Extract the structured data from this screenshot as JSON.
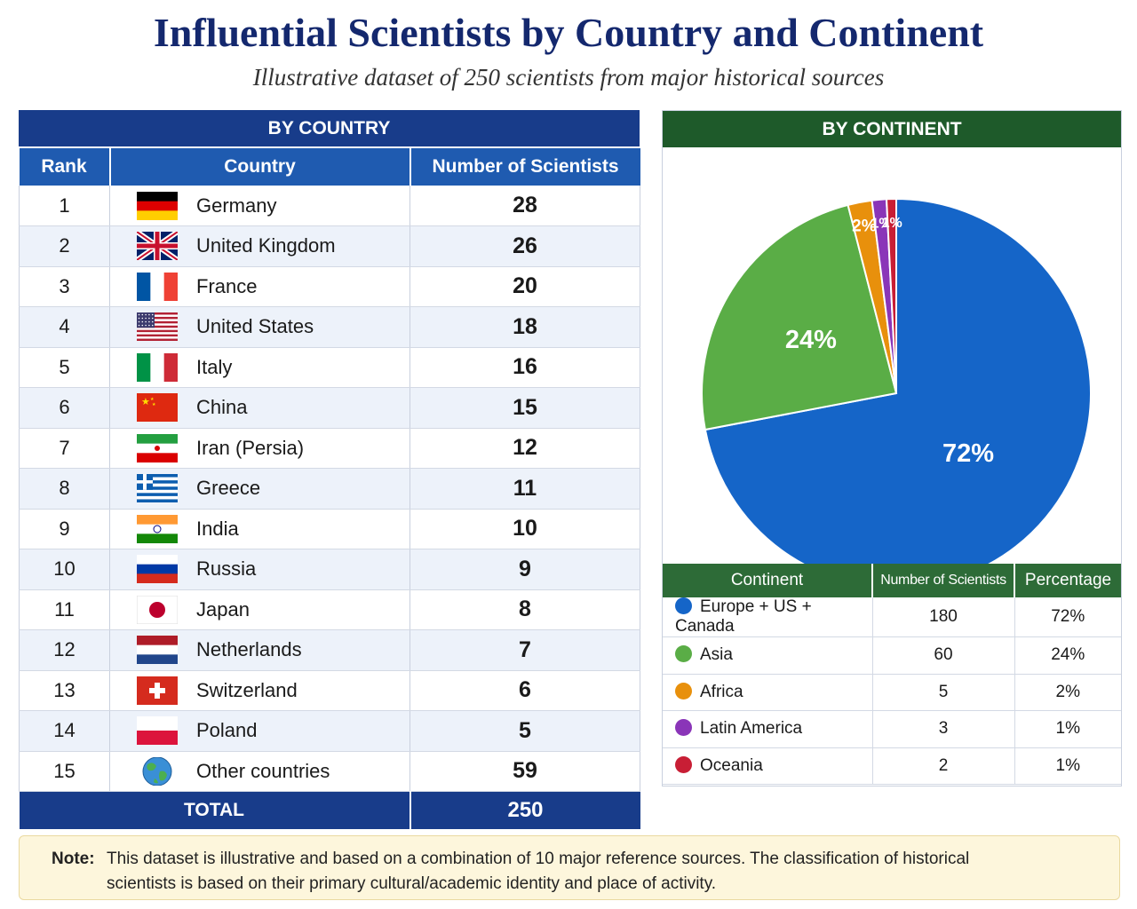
{
  "title": "Influential Scientists by Country and Continent",
  "subtitle": "Illustrative dataset of 250 scientists from major historical sources",
  "country_panel": {
    "heading": "BY COUNTRY",
    "headers": [
      "Rank",
      "Country",
      "Number of Scientists"
    ],
    "rows": [
      {
        "rank": "1",
        "country": "Germany",
        "count": "28",
        "flag": "germany-flag-icon"
      },
      {
        "rank": "2",
        "country": "United Kingdom",
        "count": "26",
        "flag": "united-kingdom-flag-icon"
      },
      {
        "rank": "3",
        "country": "France",
        "count": "20",
        "flag": "france-flag-icon"
      },
      {
        "rank": "4",
        "country": "United States",
        "count": "18",
        "flag": "united-states-flag-icon"
      },
      {
        "rank": "5",
        "country": "Italy",
        "count": "16",
        "flag": "italy-flag-icon"
      },
      {
        "rank": "6",
        "country": "China",
        "count": "15",
        "flag": "china-flag-icon"
      },
      {
        "rank": "7",
        "country": "Iran (Persia)",
        "count": "12",
        "flag": "iran-flag-icon"
      },
      {
        "rank": "8",
        "country": "Greece",
        "count": "11",
        "flag": "greece-flag-icon"
      },
      {
        "rank": "9",
        "country": "India",
        "count": "10",
        "flag": "india-flag-icon"
      },
      {
        "rank": "10",
        "country": "Russia",
        "count": "9",
        "flag": "russia-flag-icon"
      },
      {
        "rank": "11",
        "country": "Japan",
        "count": "8",
        "flag": "japan-flag-icon"
      },
      {
        "rank": "12",
        "country": "Netherlands",
        "count": "7",
        "flag": "netherlands-flag-icon"
      },
      {
        "rank": "13",
        "country": "Switzerland",
        "count": "6",
        "flag": "switzerland-flag-icon"
      },
      {
        "rank": "14",
        "country": "Poland",
        "count": "5",
        "flag": "poland-flag-icon"
      },
      {
        "rank": "15",
        "country": "Other countries",
        "count": "59",
        "flag": "globe-icon"
      }
    ],
    "total_label": "TOTAL",
    "total_value": "250"
  },
  "continent_panel": {
    "heading": "BY CONTINENT",
    "headers": [
      "Continent",
      "Number of Scientists",
      "Percentage"
    ],
    "rows": [
      {
        "continent": "Europe + US + Canada",
        "count": "180",
        "percent": "72%",
        "color": "#1565c8"
      },
      {
        "continent": "Asia",
        "count": "60",
        "percent": "24%",
        "color": "#5aad46"
      },
      {
        "continent": "Africa",
        "count": "5",
        "percent": "2%",
        "color": "#e8900c"
      },
      {
        "continent": "Latin America",
        "count": "3",
        "percent": "1%",
        "color": "#8a35b8"
      },
      {
        "continent": "Oceania",
        "count": "2",
        "percent": "1%",
        "color": "#c81e35"
      }
    ]
  },
  "chart_data": {
    "type": "pie",
    "title": "BY CONTINENT",
    "labels": [
      "Europe + US + Canada",
      "Asia",
      "Africa",
      "Latin America",
      "Oceania"
    ],
    "values": [
      180,
      60,
      5,
      3,
      2
    ],
    "slice_labels": [
      "72%",
      "24%",
      "2%",
      "1%",
      "1%"
    ],
    "colors": [
      "#1565c8",
      "#5aad46",
      "#e8900c",
      "#8a35b8",
      "#c81e35"
    ]
  },
  "note": {
    "label": "Note:",
    "text": "This dataset is illustrative and based on a combination of 10 major reference sources. The classification of historical scientists is based on their primary cultural/academic identity and place of activity."
  }
}
